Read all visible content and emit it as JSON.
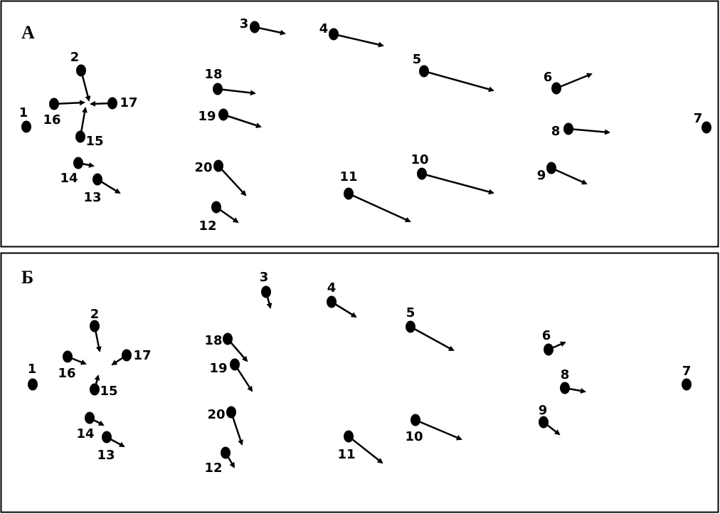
{
  "panels": [
    {
      "label": "А",
      "points": [
        "1",
        "2",
        "3",
        "4",
        "5",
        "6",
        "7",
        "8",
        "9",
        "10",
        "11",
        "12",
        "13",
        "14",
        "15",
        "16",
        "17",
        "18",
        "19",
        "20"
      ]
    },
    {
      "label": "Б",
      "points": [
        "1",
        "2",
        "3",
        "4",
        "5",
        "6",
        "7",
        "8",
        "9",
        "10",
        "11",
        "12",
        "13",
        "14",
        "15",
        "16",
        "17",
        "18",
        "19",
        "20"
      ]
    }
  ],
  "colors": {
    "stroke": "#000000",
    "background": "#ffffff"
  }
}
